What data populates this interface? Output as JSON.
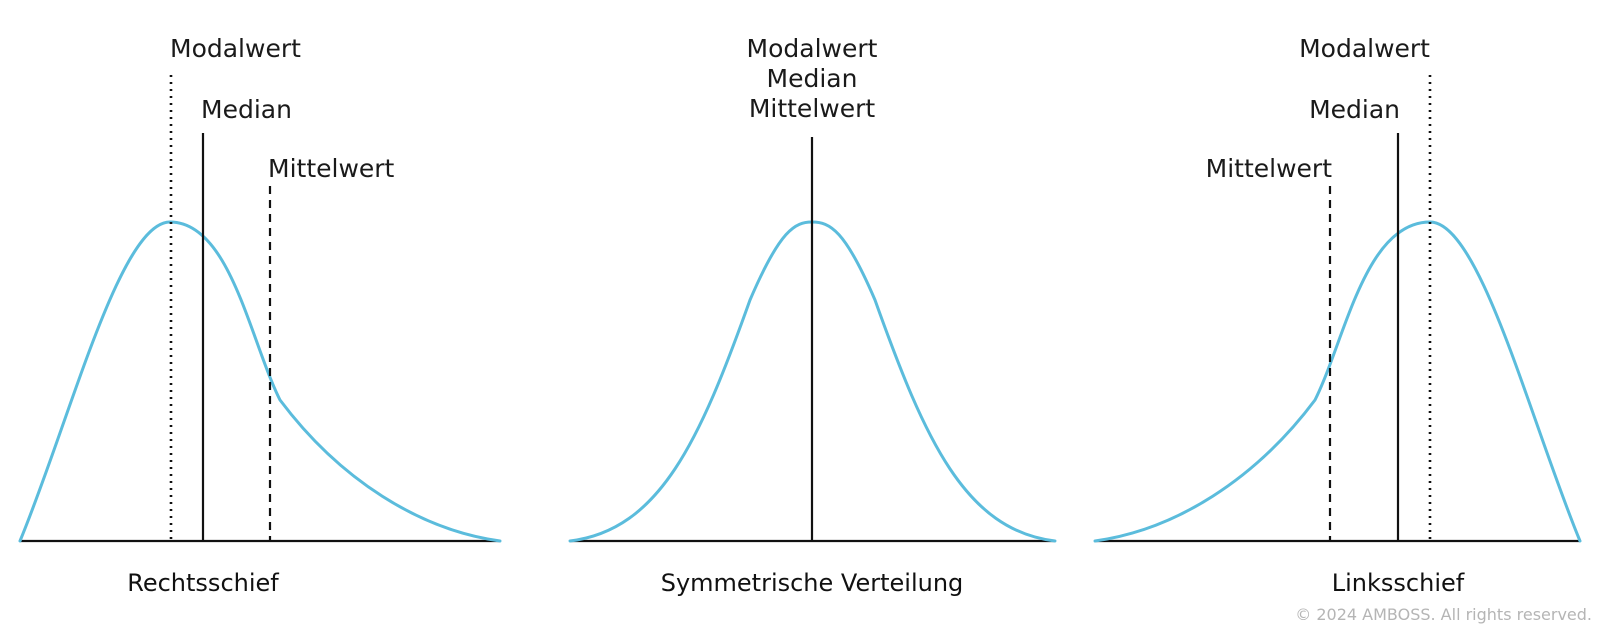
{
  "panels": {
    "right_skewed": {
      "caption": "Rechtsschief",
      "modal_label": "Modalwert",
      "median_label": "Median",
      "mean_label": "Mittelwert"
    },
    "symmetric": {
      "caption": "Symmetrische Verteilung",
      "modal_label": "Modalwert",
      "median_label": "Median",
      "mean_label": "Mittelwert"
    },
    "left_skewed": {
      "caption": "Linksschief",
      "modal_label": "Modalwert",
      "median_label": "Median",
      "mean_label": "Mittelwert"
    }
  },
  "copyright": "© 2024 AMBOSS. All rights reserved.",
  "colors": {
    "curve": "#5bbcdc",
    "lines": "#111111",
    "copyright": "#b5b5b5"
  }
}
